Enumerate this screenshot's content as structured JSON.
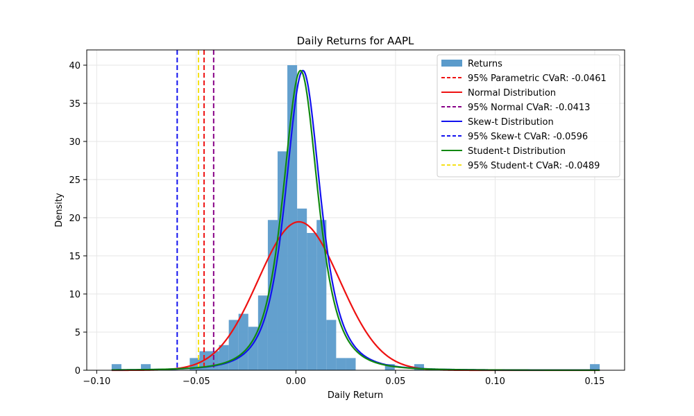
{
  "chart_data": {
    "type": "histogram",
    "title": "Daily Returns for AAPL",
    "xlabel": "Daily Return",
    "ylabel": "Density",
    "xlim": [
      -0.105,
      0.165
    ],
    "ylim": [
      0,
      42
    ],
    "xticks": [
      -0.1,
      -0.05,
      0.0,
      0.05,
      0.1,
      0.15
    ],
    "xtick_labels": [
      "−0.10",
      "−0.05",
      "0.00",
      "0.05",
      "0.10",
      "0.15"
    ],
    "yticks": [
      0,
      5,
      10,
      15,
      20,
      25,
      30,
      35,
      40
    ],
    "grid": true,
    "legend_position": "upper-right",
    "histogram": {
      "name": "Returns",
      "color": "#5b9bcb",
      "bin_start": -0.0925,
      "bin_width": 0.0049,
      "densities": [
        0.8,
        0,
        0,
        0.8,
        0,
        0,
        0,
        0,
        1.6,
        2.5,
        2.5,
        3.3,
        6.6,
        7.4,
        5.7,
        9.8,
        19.7,
        28.7,
        40.0,
        21.2,
        18.0,
        19.7,
        6.6,
        1.6,
        1.6,
        0,
        0,
        0,
        0.8,
        0,
        0,
        0.8,
        0,
        0,
        0,
        0,
        0,
        0,
        0,
        0,
        0,
        0,
        0,
        0,
        0,
        0,
        0,
        0,
        0,
        0.8
      ]
    },
    "series": [
      {
        "name": "Normal Distribution",
        "color": "#ee1111",
        "style": "solid",
        "kind": "normal",
        "params": {
          "mu": 0.0015,
          "sigma": 0.0205
        }
      },
      {
        "name": "Skew-t Distribution",
        "color": "#1111ee",
        "style": "solid",
        "kind": "t",
        "params": {
          "loc": 0.0035,
          "scale": 0.0093,
          "df": 2.8
        }
      },
      {
        "name": "Student-t Distribution",
        "color": "#118811",
        "style": "solid",
        "kind": "t",
        "params": {
          "loc": 0.0023,
          "scale": 0.0093,
          "df": 2.8
        }
      }
    ],
    "curve_x_range": [
      -0.0925,
      0.1525
    ],
    "vlines": [
      {
        "name": "95% Parametric CVaR: -0.0461",
        "x": -0.0461,
        "color": "#ee1111"
      },
      {
        "name": "95% Normal CVaR: -0.0413",
        "x": -0.0413,
        "color": "#880088"
      },
      {
        "name": "95% Skew-t CVaR: -0.0596",
        "x": -0.0596,
        "color": "#1111ee"
      },
      {
        "name": "95% Student-t CVaR: -0.0489",
        "x": -0.0489,
        "color": "#f5e11a"
      }
    ],
    "legend": [
      {
        "label": "Returns",
        "kind": "patch",
        "color": "#5b9bcb"
      },
      {
        "label": "95% Parametric CVaR: -0.0461",
        "kind": "dashed",
        "color": "#ee1111"
      },
      {
        "label": "Normal Distribution",
        "kind": "solid",
        "color": "#ee1111"
      },
      {
        "label": "95% Normal CVaR: -0.0413",
        "kind": "dashed",
        "color": "#880088"
      },
      {
        "label": "Skew-t Distribution",
        "kind": "solid",
        "color": "#1111ee"
      },
      {
        "label": "95% Skew-t CVaR: -0.0596",
        "kind": "dashed",
        "color": "#1111ee"
      },
      {
        "label": "Student-t Distribution",
        "kind": "solid",
        "color": "#118811"
      },
      {
        "label": "95% Student-t CVaR: -0.0489",
        "kind": "dashed",
        "color": "#f5e11a"
      }
    ]
  }
}
